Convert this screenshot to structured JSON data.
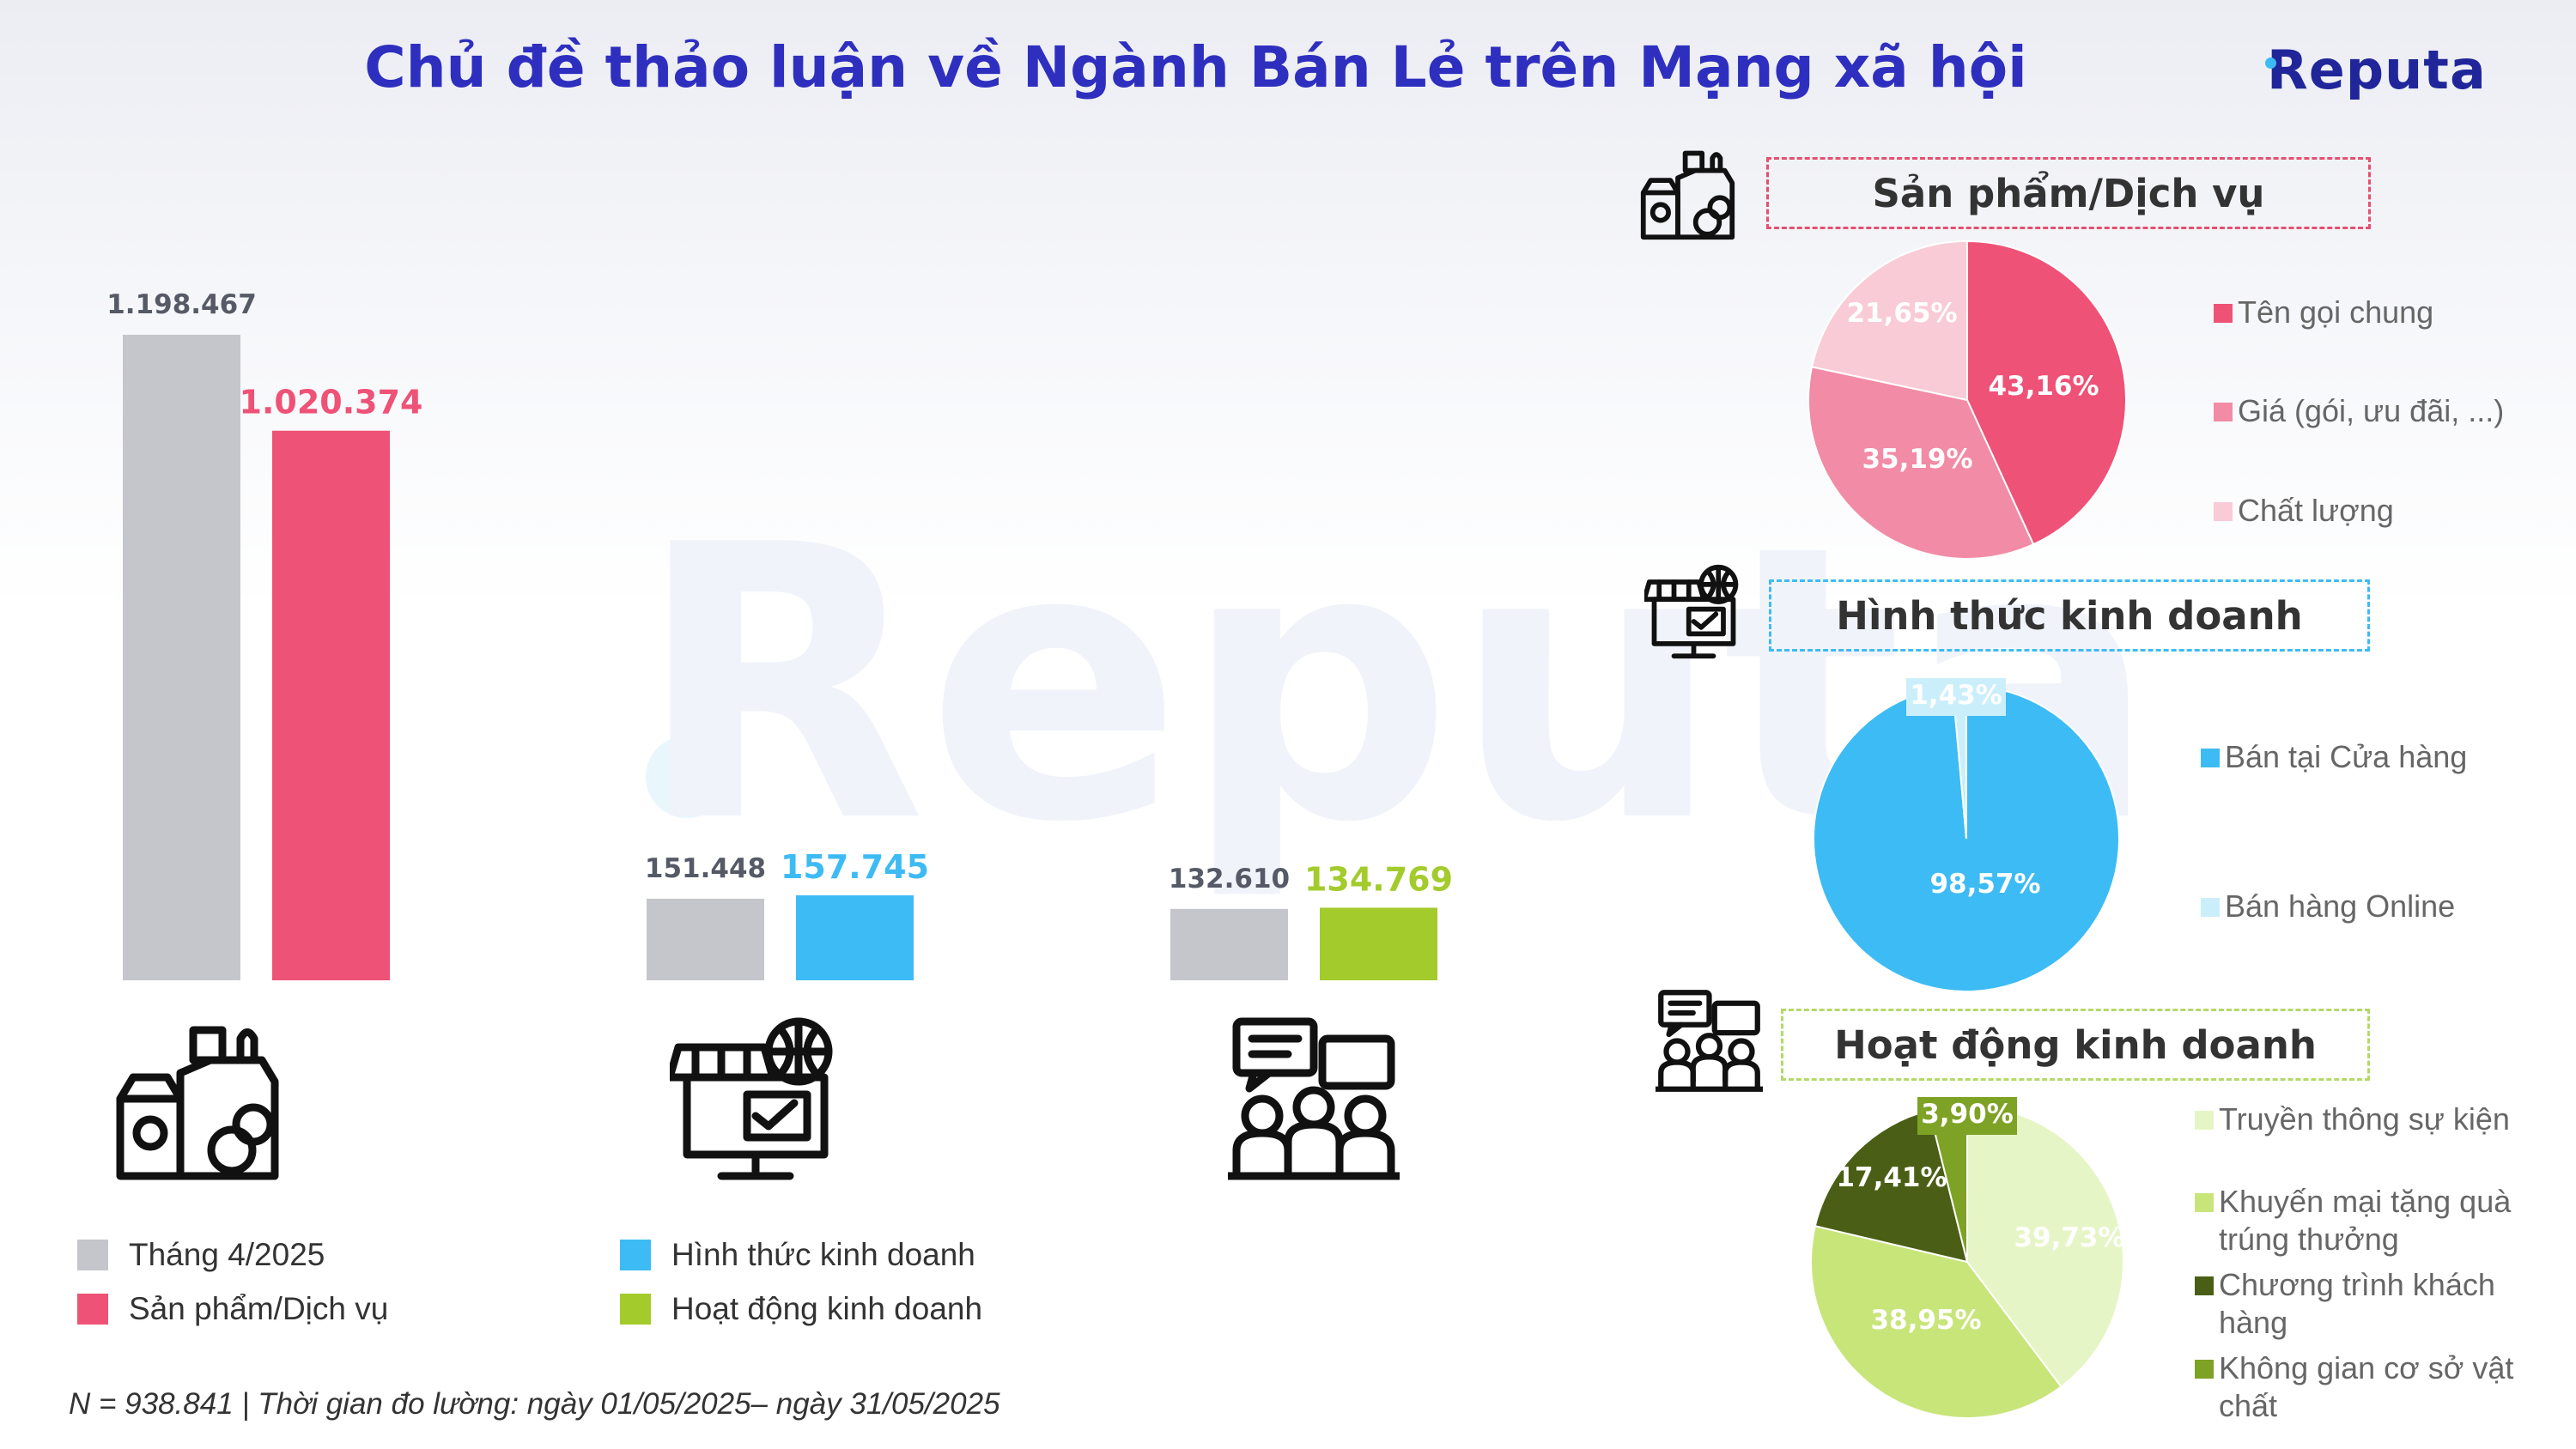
{
  "title": "Chủ đề thảo luận về Ngành Bán Lẻ trên Mạng xã hội",
  "brand": "Reputa",
  "colors": {
    "baseline": "#c5c6cb",
    "product": "#ee5276",
    "business_form": "#3dbbf4",
    "business_activity": "#a3cb2c"
  },
  "chart_data": [
    {
      "type": "bar",
      "categories": [
        "Sản phẩm/Dịch vụ",
        "Hình thức kinh doanh",
        "Hoạt động kinh doanh"
      ],
      "series": [
        {
          "name": "Tháng 4/2025",
          "values": [
            1198467,
            151448,
            132610
          ],
          "labels": [
            "1.198.467",
            "151.448",
            "132.610"
          ]
        },
        {
          "name": "",
          "values": [
            1020374,
            157745,
            134769
          ],
          "labels": [
            "1.020.374",
            "157.745",
            "134.769"
          ]
        }
      ],
      "ylim": [
        0,
        1198467
      ],
      "legend": [
        {
          "label": "Tháng 4/2025",
          "color": "#c5c6cb"
        },
        {
          "label": "Sản phẩm/Dịch vụ",
          "color": "#ee5276"
        },
        {
          "label": "Hình thức kinh doanh",
          "color": "#3dbbf4"
        },
        {
          "label": "Hoạt động kinh doanh",
          "color": "#a3cb2c"
        }
      ],
      "icons": [
        "grocery-bag-icon",
        "online-store-icon",
        "discussion-group-icon"
      ]
    },
    {
      "type": "pie",
      "title": "Sản phẩm/Dịch vụ",
      "icon": "grocery-bag-icon",
      "slices": [
        {
          "label": "Tên gọi chung",
          "value": 43.16,
          "display": "43,16%",
          "color": "#ee5276"
        },
        {
          "label": "Giá (gói, ưu đãi, ...)",
          "value": 35.19,
          "display": "35,19%",
          "color": "#f28ba6"
        },
        {
          "label": "Chất lượng",
          "value": 21.65,
          "display": "21,65%",
          "color": "#f8cbd7"
        }
      ]
    },
    {
      "type": "pie",
      "title": "Hình thức kinh doanh",
      "icon": "online-store-icon",
      "slices": [
        {
          "label": "Bán tại Cửa hàng",
          "value": 98.57,
          "display": "98,57%",
          "color": "#3dbbf4"
        },
        {
          "label": "Bán hàng Online",
          "value": 1.43,
          "display": "1,43%",
          "color": "#cbeefb"
        }
      ]
    },
    {
      "type": "pie",
      "title": "Hoạt động kinh doanh",
      "icon": "discussion-group-icon",
      "slices": [
        {
          "label": "Truyền thông sự kiện",
          "value": 39.73,
          "display": "39,73%",
          "color": "#e6f5c6"
        },
        {
          "label": "Khuyến mại tặng quà trúng thưởng",
          "value": 38.95,
          "display": "38,95%",
          "color": "#c8e57a"
        },
        {
          "label": "Chương trình khách hàng",
          "value": 17.41,
          "display": "17,41%",
          "color": "#4a5f15"
        },
        {
          "label": "Không gian cơ sở vật chất",
          "value": 3.9,
          "display": "3,90%",
          "color": "#7ea225"
        }
      ]
    }
  ],
  "note": "N = 938.841 | Thời gian đo lường: ngày 01/05/2025– ngày 31/05/2025"
}
